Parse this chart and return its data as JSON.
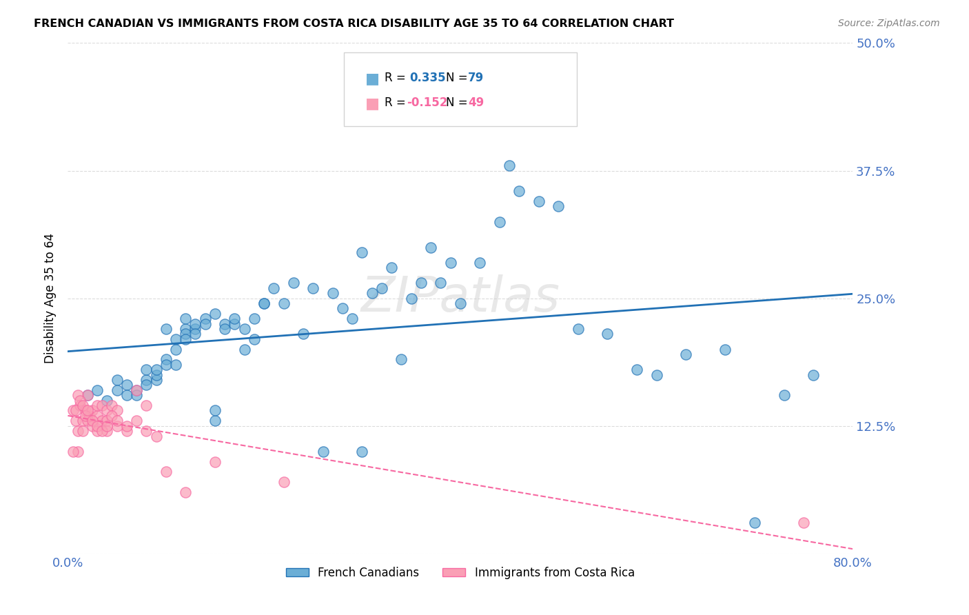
{
  "title": "FRENCH CANADIAN VS IMMIGRANTS FROM COSTA RICA DISABILITY AGE 35 TO 64 CORRELATION CHART",
  "source": "Source: ZipAtlas.com",
  "xlabel": "",
  "ylabel": "Disability Age 35 to 64",
  "xlim": [
    0.0,
    0.8
  ],
  "ylim": [
    0.0,
    0.5
  ],
  "yticks": [
    0.0,
    0.125,
    0.25,
    0.375,
    0.5
  ],
  "ytick_labels": [
    "",
    "12.5%",
    "25.0%",
    "37.5%",
    "50.0%"
  ],
  "xtick_labels": [
    "0.0%",
    "80.0%"
  ],
  "blue_R": 0.335,
  "blue_N": 79,
  "pink_R": -0.152,
  "pink_N": 49,
  "blue_color": "#6baed6",
  "pink_color": "#fa9fb5",
  "blue_line_color": "#2171b5",
  "pink_line_color": "#f768a1",
  "background_color": "#ffffff",
  "grid_color": "#cccccc",
  "label_color": "#4472c4",
  "watermark": "ZIPatlas",
  "blue_scatter_x": [
    0.02,
    0.03,
    0.04,
    0.05,
    0.05,
    0.06,
    0.06,
    0.07,
    0.07,
    0.08,
    0.08,
    0.08,
    0.09,
    0.09,
    0.09,
    0.1,
    0.1,
    0.1,
    0.11,
    0.11,
    0.11,
    0.12,
    0.12,
    0.12,
    0.12,
    0.13,
    0.13,
    0.13,
    0.14,
    0.14,
    0.15,
    0.15,
    0.15,
    0.16,
    0.16,
    0.17,
    0.17,
    0.18,
    0.18,
    0.19,
    0.19,
    0.2,
    0.2,
    0.21,
    0.22,
    0.23,
    0.24,
    0.25,
    0.26,
    0.27,
    0.28,
    0.29,
    0.3,
    0.31,
    0.32,
    0.33,
    0.34,
    0.35,
    0.36,
    0.37,
    0.38,
    0.39,
    0.4,
    0.42,
    0.44,
    0.46,
    0.48,
    0.5,
    0.52,
    0.55,
    0.58,
    0.6,
    0.63,
    0.67,
    0.7,
    0.73,
    0.76,
    0.3,
    0.45
  ],
  "blue_scatter_y": [
    0.155,
    0.16,
    0.15,
    0.17,
    0.16,
    0.165,
    0.155,
    0.16,
    0.155,
    0.17,
    0.165,
    0.18,
    0.17,
    0.175,
    0.18,
    0.19,
    0.185,
    0.22,
    0.21,
    0.2,
    0.185,
    0.22,
    0.215,
    0.21,
    0.23,
    0.22,
    0.225,
    0.215,
    0.23,
    0.225,
    0.235,
    0.13,
    0.14,
    0.225,
    0.22,
    0.225,
    0.23,
    0.22,
    0.2,
    0.21,
    0.23,
    0.245,
    0.245,
    0.26,
    0.245,
    0.265,
    0.215,
    0.26,
    0.1,
    0.255,
    0.24,
    0.23,
    0.1,
    0.255,
    0.26,
    0.28,
    0.19,
    0.25,
    0.265,
    0.3,
    0.265,
    0.285,
    0.245,
    0.285,
    0.325,
    0.355,
    0.345,
    0.34,
    0.22,
    0.215,
    0.18,
    0.175,
    0.195,
    0.2,
    0.03,
    0.155,
    0.175,
    0.295,
    0.38
  ],
  "pink_scatter_x": [
    0.005,
    0.008,
    0.01,
    0.01,
    0.012,
    0.015,
    0.015,
    0.018,
    0.02,
    0.02,
    0.022,
    0.025,
    0.025,
    0.03,
    0.03,
    0.03,
    0.035,
    0.035,
    0.04,
    0.04,
    0.04,
    0.045,
    0.05,
    0.05,
    0.06,
    0.07,
    0.07,
    0.08,
    0.09,
    0.1,
    0.12,
    0.15,
    0.22,
    0.005,
    0.008,
    0.01,
    0.012,
    0.015,
    0.018,
    0.02,
    0.025,
    0.03,
    0.035,
    0.04,
    0.045,
    0.05,
    0.06,
    0.08,
    0.75
  ],
  "pink_scatter_y": [
    0.14,
    0.13,
    0.12,
    0.1,
    0.145,
    0.13,
    0.12,
    0.14,
    0.155,
    0.13,
    0.135,
    0.14,
    0.125,
    0.135,
    0.145,
    0.12,
    0.13,
    0.145,
    0.14,
    0.13,
    0.12,
    0.145,
    0.14,
    0.125,
    0.12,
    0.16,
    0.13,
    0.145,
    0.115,
    0.08,
    0.06,
    0.09,
    0.07,
    0.1,
    0.14,
    0.155,
    0.15,
    0.145,
    0.135,
    0.14,
    0.13,
    0.125,
    0.12,
    0.125,
    0.135,
    0.13,
    0.125,
    0.12,
    0.03
  ]
}
